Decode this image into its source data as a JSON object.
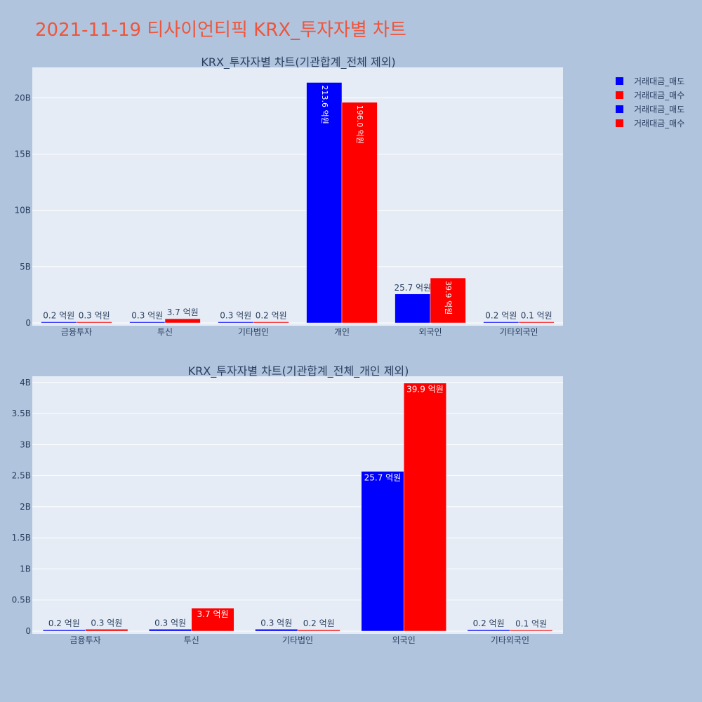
{
  "page_title": "2021-11-19 티사이언티픽 KRX_투자자별 차트",
  "colors": {
    "sell": "#0000ff",
    "buy": "#ff0000",
    "title": "#ef553b",
    "plot_bg": "#e5ecf6",
    "page_bg": "#b0c4de"
  },
  "legend": [
    {
      "label": "거래대금_매도",
      "color": "#0000ff"
    },
    {
      "label": "거래대금_매수",
      "color": "#ff0000"
    },
    {
      "label": "거래대금_매도",
      "color": "#0000ff"
    },
    {
      "label": "거래대금_매수",
      "color": "#ff0000"
    }
  ],
  "chart_data": [
    {
      "type": "bar",
      "title": "KRX_투자자별 차트(기관합계_전체 제외)",
      "categories": [
        "금융투자",
        "투신",
        "기타법인",
        "개인",
        "외국인",
        "기타외국인"
      ],
      "ylim": [
        0,
        22700000000
      ],
      "yticks": [
        0,
        5000000000,
        10000000000,
        15000000000,
        20000000000
      ],
      "ytick_labels": [
        "0",
        "5B",
        "10B",
        "15B",
        "20B"
      ],
      "grid": true,
      "legend_position": "top-right",
      "series": [
        {
          "name": "거래대금_매도",
          "color": "#0000ff",
          "values": [
            20000000,
            30000000,
            30000000,
            21360000000,
            2570000000,
            20000000
          ],
          "labels": [
            "0.2 억원",
            "0.3 억원",
            "0.3 억원",
            "213.6 억원",
            "25.7 억원",
            "0.2 억원"
          ]
        },
        {
          "name": "거래대금_매수",
          "color": "#ff0000",
          "values": [
            30000000,
            370000000,
            20000000,
            19600000000,
            3990000000,
            10000000
          ],
          "labels": [
            "0.3 억원",
            "3.7 억원",
            "0.2 억원",
            "196.0 억원",
            "39.9 억원",
            "0.1 억원"
          ]
        }
      ]
    },
    {
      "type": "bar",
      "title": "KRX_투자자별 차트(기관합계_전체_개인 제외)",
      "categories": [
        "금융투자",
        "투신",
        "기타법인",
        "외국인",
        "기타외국인"
      ],
      "ylim": [
        0,
        4100000000
      ],
      "yticks": [
        0,
        500000000,
        1000000000,
        1500000000,
        2000000000,
        2500000000,
        3000000000,
        3500000000,
        4000000000
      ],
      "ytick_labels": [
        "0",
        "0.5B",
        "1B",
        "1.5B",
        "2B",
        "2.5B",
        "3B",
        "3.5B",
        "4B"
      ],
      "grid": true,
      "series": [
        {
          "name": "거래대금_매도",
          "color": "#0000ff",
          "values": [
            20000000,
            30000000,
            30000000,
            2570000000,
            20000000
          ],
          "labels": [
            "0.2 억원",
            "0.3 억원",
            "0.3 억원",
            "25.7 억원",
            "0.2 억원"
          ]
        },
        {
          "name": "거래대금_매수",
          "color": "#ff0000",
          "values": [
            30000000,
            370000000,
            20000000,
            3990000000,
            10000000
          ],
          "labels": [
            "0.3 억원",
            "3.7 억원",
            "0.2 억원",
            "39.9 억원",
            "0.1 억원"
          ]
        }
      ]
    }
  ]
}
